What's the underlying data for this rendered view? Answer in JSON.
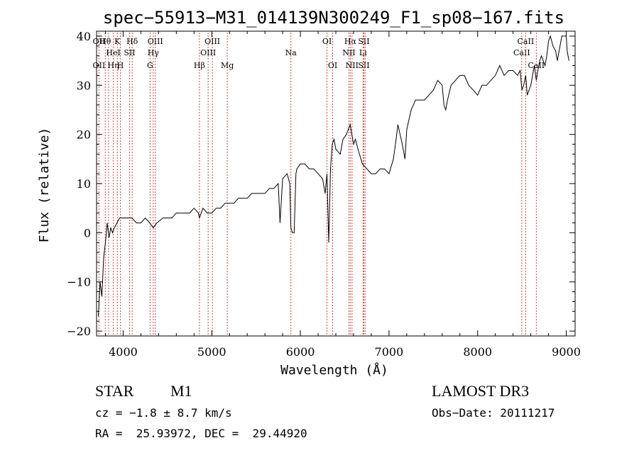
{
  "chart_data": {
    "type": "line",
    "title": "spec−55913−M31_014139N300249_F1_sp08−167.fits",
    "xlabel": "Wavelength (Å)",
    "ylabel": "Flux (relative)",
    "xlim": [
      3700,
      9100
    ],
    "ylim": [
      -21,
      41
    ],
    "x_ticks": [
      4000,
      5000,
      6000,
      7000,
      8000,
      9000
    ],
    "y_ticks": [
      -20,
      -10,
      0,
      10,
      20,
      30,
      40
    ],
    "y_tick_labels": [
      "−20",
      "−10",
      "0",
      "10",
      "20",
      "30",
      "40"
    ],
    "grid": false,
    "line_color": "#000000",
    "marker_color": "#c0392b",
    "series": [
      {
        "x": [
          3720,
          3740,
          3760,
          3780,
          3800,
          3820,
          3840,
          3860,
          3880,
          3900,
          3930,
          3960,
          4000,
          4050,
          4100,
          4150,
          4200,
          4250,
          4300,
          4340,
          4380,
          4450,
          4500,
          4550,
          4600,
          4650,
          4700,
          4750,
          4800,
          4850,
          4861,
          4900,
          4950,
          5000,
          5050,
          5100,
          5150,
          5200,
          5250,
          5300,
          5350,
          5400,
          5450,
          5500,
          5550,
          5600,
          5650,
          5700,
          5750,
          5770,
          5800,
          5850,
          5880,
          5893,
          5910,
          5930,
          5950,
          5960,
          6000,
          6050,
          6100,
          6150,
          6200,
          6250,
          6280,
          6300,
          6320,
          6340,
          6360,
          6380,
          6400,
          6450,
          6480,
          6520,
          6540,
          6563,
          6580,
          6600,
          6620,
          6650,
          6700,
          6750,
          6800,
          6850,
          6900,
          6950,
          7000,
          7050,
          7080,
          7100,
          7150,
          7180,
          7200,
          7250,
          7300,
          7350,
          7400,
          7450,
          7500,
          7550,
          7600,
          7620,
          7640,
          7660,
          7700,
          7750,
          7800,
          7850,
          7900,
          7950,
          8000,
          8050,
          8100,
          8150,
          8200,
          8250,
          8300,
          8350,
          8400,
          8450,
          8480,
          8500,
          8520,
          8542,
          8560,
          8600,
          8640,
          8662,
          8680,
          8700,
          8720,
          8740,
          8760,
          8780,
          8800,
          8820,
          8850,
          8880,
          8900,
          8950,
          9000,
          9010,
          9030
        ],
        "y": [
          -17,
          -10,
          -13,
          -5,
          -2,
          2,
          -1,
          1,
          0,
          1,
          2,
          3,
          3,
          3,
          3,
          2,
          2,
          3,
          2,
          1,
          2,
          3,
          3,
          3,
          4,
          4,
          4,
          4,
          5,
          4,
          3,
          5,
          4,
          4,
          5,
          5,
          6,
          6,
          6,
          7,
          7,
          7,
          8,
          8,
          8,
          8,
          9,
          9,
          10,
          2,
          11,
          12,
          10,
          1,
          0,
          0,
          12,
          13,
          14,
          14,
          13,
          13,
          12,
          11,
          8,
          12,
          -2,
          13,
          18,
          19,
          17,
          16,
          19,
          20,
          21,
          22,
          20,
          18,
          19,
          17,
          14,
          13,
          12,
          12,
          13,
          13,
          12,
          15,
          19,
          22,
          18,
          15,
          21,
          25,
          27,
          27,
          27,
          28,
          29,
          31,
          30,
          26,
          25,
          27,
          30,
          31,
          32,
          32,
          30,
          29,
          28,
          30,
          30,
          31,
          32,
          34,
          32,
          33,
          33,
          32,
          33,
          29,
          30,
          32,
          28,
          30,
          34,
          31,
          33,
          35,
          36,
          35,
          34,
          36,
          39,
          40,
          38,
          37,
          35,
          40,
          40,
          37,
          35
        ]
      }
    ],
    "line_markers": [
      {
        "x": 3727,
        "top": "OII",
        "mid": "",
        "bot": "OII"
      },
      {
        "x": 3798,
        "top": "Hθ",
        "mid": "",
        "bot": ""
      },
      {
        "x": 3835,
        "top": "",
        "mid": "",
        "bot": ""
      },
      {
        "x": 3889,
        "top": "",
        "mid": "HeI",
        "bot": "Hη"
      },
      {
        "x": 3934,
        "top": "K",
        "mid": "",
        "bot": ""
      },
      {
        "x": 3969,
        "top": "",
        "mid": "",
        "bot": "H"
      },
      {
        "x": 4072,
        "top": "",
        "mid": "SII",
        "bot": ""
      },
      {
        "x": 4102,
        "top": "Hδ",
        "mid": "",
        "bot": ""
      },
      {
        "x": 4304,
        "top": "",
        "mid": "",
        "bot": "G"
      },
      {
        "x": 4340,
        "top": "",
        "mid": "Hγ",
        "bot": ""
      },
      {
        "x": 4363,
        "top": "OIII",
        "mid": "",
        "bot": ""
      },
      {
        "x": 4861,
        "top": "",
        "mid": "",
        "bot": "Hβ"
      },
      {
        "x": 4959,
        "top": "",
        "mid": "OIII",
        "bot": ""
      },
      {
        "x": 5007,
        "top": "OIII",
        "mid": "",
        "bot": ""
      },
      {
        "x": 5175,
        "top": "",
        "mid": "",
        "bot": "Mg"
      },
      {
        "x": 5893,
        "top": "",
        "mid": "Na",
        "bot": ""
      },
      {
        "x": 6300,
        "top": "OI",
        "mid": "",
        "bot": ""
      },
      {
        "x": 6364,
        "top": "",
        "mid": "",
        "bot": "OI"
      },
      {
        "x": 6548,
        "top": "",
        "mid": "NII",
        "bot": ""
      },
      {
        "x": 6563,
        "top": "Hα",
        "mid": "",
        "bot": ""
      },
      {
        "x": 6583,
        "top": "",
        "mid": "",
        "bot": "NII"
      },
      {
        "x": 6707,
        "top": "",
        "mid": "Li",
        "bot": ""
      },
      {
        "x": 6716,
        "top": "SII",
        "mid": "",
        "bot": "SII"
      },
      {
        "x": 6731,
        "top": "",
        "mid": "",
        "bot": ""
      },
      {
        "x": 8498,
        "top": "",
        "mid": "CaII",
        "bot": ""
      },
      {
        "x": 8542,
        "top": "CaII",
        "mid": "",
        "bot": ""
      },
      {
        "x": 8662,
        "top": "",
        "mid": "",
        "bot": "CaII"
      }
    ]
  },
  "info": {
    "class": "STAR",
    "subclass": "M1",
    "survey": "LAMOST DR3",
    "cz": "cz = −1.8 ± 8.7 km/s",
    "obs_date": "Obs−Date: 20111217",
    "radec": "RA =  25.93972, DEC =  29.44920"
  }
}
